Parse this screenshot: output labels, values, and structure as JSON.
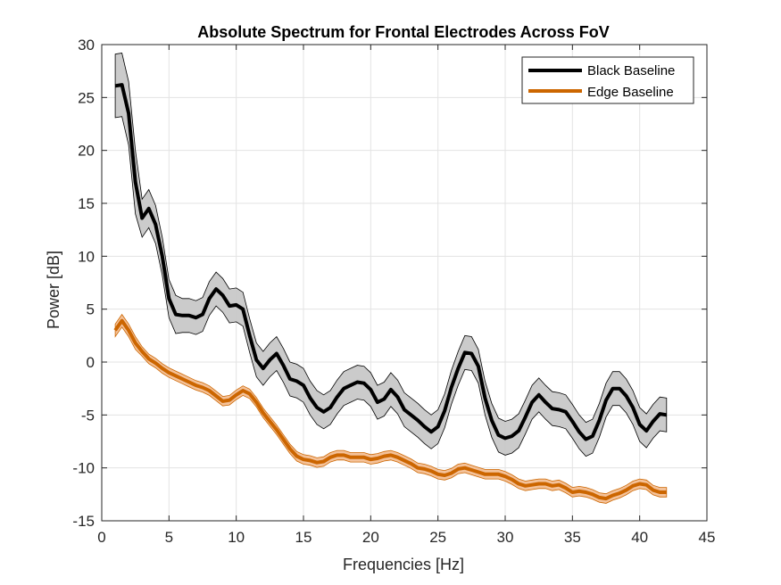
{
  "chart_data": {
    "type": "line",
    "title": "Absolute Spectrum for Frontal Electrodes Across FoV",
    "xlabel": "Frequencies [Hz]",
    "ylabel": "Power [dB]",
    "xlim": [
      0,
      45
    ],
    "ylim": [
      -15,
      30
    ],
    "xticks": [
      "0",
      "5",
      "10",
      "15",
      "20",
      "25",
      "30",
      "35",
      "40",
      "45"
    ],
    "yticks": [
      "-15",
      "-10",
      "-5",
      "0",
      "5",
      "10",
      "15",
      "20",
      "25",
      "30"
    ],
    "grid": true,
    "legend_location": "top-right",
    "series": [
      {
        "name": "Black Baseline",
        "color": "#000000",
        "band_color": "#c8c8c8",
        "x": [
          1,
          1.5,
          2,
          2.5,
          3,
          3.5,
          4,
          4.5,
          5,
          5.5,
          6,
          6.5,
          7,
          7.5,
          8,
          8.5,
          9,
          9.5,
          10,
          10.5,
          11,
          11.5,
          12,
          12.5,
          13,
          13.5,
          14,
          14.5,
          15,
          15.5,
          16,
          16.5,
          17,
          17.5,
          18,
          18.5,
          19,
          19.5,
          20,
          20.5,
          21,
          21.5,
          22,
          22.5,
          23,
          23.5,
          24,
          24.5,
          25,
          25.5,
          26,
          26.5,
          27,
          27.5,
          28,
          28.5,
          29,
          29.5,
          30,
          30.5,
          31,
          31.5,
          32,
          32.5,
          33,
          33.5,
          34,
          34.5,
          35,
          35.5,
          36,
          36.5,
          37,
          37.5,
          38,
          38.5,
          39,
          39.5,
          40,
          40.5,
          41,
          41.5,
          42
        ],
        "y": [
          26.1,
          26.2,
          23.5,
          17,
          13.6,
          14.5,
          13,
          10,
          6,
          4.5,
          4.4,
          4.4,
          4.2,
          4.5,
          6,
          6.9,
          6.3,
          5.3,
          5.4,
          5,
          2.5,
          0.2,
          -0.6,
          0.2,
          0.8,
          -0.3,
          -1.6,
          -1.8,
          -2.2,
          -3.4,
          -4.3,
          -4.7,
          -4.3,
          -3.3,
          -2.5,
          -2.2,
          -1.9,
          -2,
          -2.6,
          -3.8,
          -3.5,
          -2.6,
          -3.3,
          -4.5,
          -5,
          -5.5,
          -6.1,
          -6.6,
          -6.1,
          -4.6,
          -2.4,
          -0.6,
          0.9,
          0.8,
          -0.4,
          -3.4,
          -5.5,
          -6.9,
          -7.2,
          -7,
          -6.5,
          -5.2,
          -3.8,
          -3.1,
          -3.8,
          -4.4,
          -4.5,
          -4.7,
          -5.6,
          -6.6,
          -7.3,
          -7,
          -5.5,
          -3.6,
          -2.5,
          -2.5,
          -3.2,
          -4.3,
          -5.9,
          -6.5,
          -5.6,
          -4.9,
          -5
        ]
      },
      {
        "name": "Edge Baseline",
        "color": "#cc6600",
        "band_color": "#f3bf95",
        "x": [
          1,
          1.5,
          2,
          2.5,
          3,
          3.5,
          4,
          4.5,
          5,
          5.5,
          6,
          6.5,
          7,
          7.5,
          8,
          8.5,
          9,
          9.5,
          10,
          10.5,
          11,
          11.5,
          12,
          12.5,
          13,
          13.5,
          14,
          14.5,
          15,
          15.5,
          16,
          16.5,
          17,
          17.5,
          18,
          18.5,
          19,
          19.5,
          20,
          20.5,
          21,
          21.5,
          22,
          22.5,
          23,
          23.5,
          24,
          24.5,
          25,
          25.5,
          26,
          26.5,
          27,
          27.5,
          28,
          28.5,
          29,
          29.5,
          30,
          30.5,
          31,
          31.5,
          32,
          32.5,
          33,
          33.5,
          34,
          34.5,
          35,
          35.5,
          36,
          36.5,
          37,
          37.5,
          38,
          38.5,
          39,
          39.5,
          40,
          40.5,
          41,
          41.5,
          42
        ],
        "y": [
          3,
          3.9,
          3,
          1.8,
          1,
          0.3,
          -0.1,
          -0.6,
          -1,
          -1.3,
          -1.6,
          -1.9,
          -2.2,
          -2.4,
          -2.7,
          -3.2,
          -3.7,
          -3.6,
          -3.1,
          -2.7,
          -3,
          -3.8,
          -4.8,
          -5.6,
          -6.4,
          -7.3,
          -8.2,
          -8.9,
          -9.2,
          -9.3,
          -9.5,
          -9.4,
          -9,
          -8.8,
          -8.8,
          -9,
          -9,
          -9,
          -9.2,
          -9.1,
          -8.9,
          -8.8,
          -9,
          -9.3,
          -9.6,
          -10,
          -10.1,
          -10.3,
          -10.6,
          -10.7,
          -10.5,
          -10.1,
          -10,
          -10.2,
          -10.4,
          -10.6,
          -10.6,
          -10.6,
          -10.8,
          -11.1,
          -11.5,
          -11.7,
          -11.6,
          -11.5,
          -11.5,
          -11.7,
          -11.6,
          -11.9,
          -12.3,
          -12.2,
          -12.3,
          -12.5,
          -12.8,
          -12.9,
          -12.6,
          -12.4,
          -12.1,
          -11.7,
          -11.5,
          -11.6,
          -12.1,
          -12.3,
          -12.3
        ]
      }
    ]
  }
}
